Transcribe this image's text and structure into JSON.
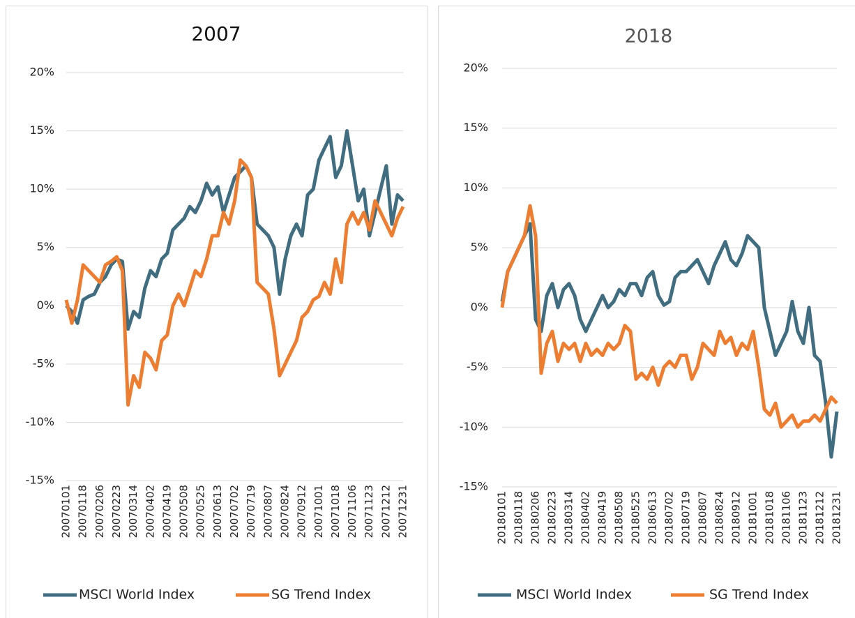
{
  "chart_data": [
    {
      "type": "line",
      "title": "2007",
      "categories": [
        "20070101",
        null,
        null,
        "20070118",
        null,
        null,
        "20070206",
        null,
        null,
        "20070223",
        null,
        null,
        "20070314",
        null,
        null,
        "20070402",
        null,
        null,
        "20070419",
        null,
        null,
        "20070508",
        null,
        null,
        "20070525",
        null,
        null,
        "20070613",
        null,
        null,
        "20070702",
        null,
        null,
        "20070719",
        null,
        null,
        "20070807",
        null,
        null,
        "20070824",
        null,
        null,
        "20070912",
        null,
        null,
        "20071001",
        null,
        null,
        "20071018",
        null,
        null,
        "20071106",
        null,
        null,
        "20071123",
        null,
        null,
        "20071212",
        null,
        null,
        "20071231"
      ],
      "series": [
        {
          "name": "MSCI World Index",
          "color": "#416d80",
          "values": [
            0,
            -0.5,
            -1.5,
            0.5,
            0.8,
            1,
            2,
            2.5,
            3.5,
            4,
            3.8,
            -2,
            -0.5,
            -1,
            1.5,
            3,
            2.5,
            4,
            4.5,
            6.5,
            7,
            7.5,
            8.5,
            8,
            9,
            10.5,
            9.5,
            10.2,
            8,
            9.5,
            11,
            11.5,
            12,
            11,
            7,
            6.5,
            6,
            5,
            1,
            4,
            6,
            7,
            6,
            9.5,
            10,
            12.5,
            13.5,
            14.5,
            11,
            12,
            15,
            12,
            9,
            10,
            6,
            8,
            10,
            12,
            7,
            9.5,
            9
          ]
        },
        {
          "name": "SG Trend Index",
          "color": "#ed7d31",
          "values": [
            0.5,
            -1.5,
            0.5,
            3.5,
            3,
            2.5,
            2,
            3.5,
            3.8,
            4.2,
            3,
            -8.5,
            -6,
            -7,
            -4,
            -4.5,
            -5.5,
            -3,
            -2.5,
            0,
            1,
            0,
            1.5,
            3,
            2.5,
            4,
            6,
            6,
            8,
            7,
            9,
            12.5,
            12,
            11,
            2,
            1.5,
            1,
            -2,
            -6,
            -5,
            -4,
            -3,
            -1,
            -0.5,
            0.5,
            0.8,
            2,
            1,
            4,
            2,
            7,
            8,
            7,
            8,
            6.5,
            9,
            8,
            7,
            6,
            7.5,
            8.5
          ]
        }
      ],
      "ylim": [
        -15,
        20
      ],
      "yticks": [
        {
          "value": -15,
          "label": "-15%"
        },
        {
          "value": -10,
          "label": "-10%"
        },
        {
          "value": -5,
          "label": "-5%"
        },
        {
          "value": 0,
          "label": "0%"
        },
        {
          "value": 5,
          "label": "5%"
        },
        {
          "value": 10,
          "label": "10%"
        },
        {
          "value": 15,
          "label": "15%"
        },
        {
          "value": 20,
          "label": "20%"
        }
      ],
      "grid": true
    },
    {
      "type": "line",
      "title": "2018",
      "categories": [
        "20180101",
        null,
        null,
        "20180118",
        null,
        null,
        "20180206",
        null,
        null,
        "20180223",
        null,
        null,
        "20180314",
        null,
        null,
        "20180402",
        null,
        null,
        "20180419",
        null,
        null,
        "20180508",
        null,
        null,
        "20180525",
        null,
        null,
        "20180613",
        null,
        null,
        "20180702",
        null,
        null,
        "20180719",
        null,
        null,
        "20180807",
        null,
        null,
        "20180824",
        null,
        null,
        "20180912",
        null,
        null,
        "20181001",
        null,
        null,
        "20181018",
        null,
        null,
        "20181106",
        null,
        null,
        "20181123",
        null,
        null,
        "20181212",
        null,
        null,
        "20181231"
      ],
      "series": [
        {
          "name": "MSCI World Index",
          "color": "#416d80",
          "values": [
            0.5,
            3,
            4,
            5,
            6,
            7,
            -1,
            -2,
            1,
            2,
            0,
            1.5,
            2,
            1,
            -1,
            -2,
            -1,
            0,
            1,
            0,
            0.5,
            1.5,
            1,
            2,
            2,
            1,
            2.5,
            3,
            1,
            0.2,
            0.5,
            2.5,
            3,
            3,
            3.5,
            4,
            3,
            2,
            3.5,
            4.5,
            5.5,
            4,
            3.5,
            4.5,
            6,
            5.5,
            5,
            0,
            -2,
            -4,
            -3,
            -2,
            0.5,
            -2,
            -3,
            0,
            -4,
            -4.5,
            -8,
            -12.5,
            -8.7
          ]
        },
        {
          "name": "SG Trend Index",
          "color": "#ed7d31",
          "values": [
            0,
            3,
            4,
            5,
            6,
            8.5,
            6,
            -5.5,
            -3,
            -2,
            -4.5,
            -3,
            -3.5,
            -3,
            -4.5,
            -3,
            -4,
            -3.5,
            -4,
            -3,
            -3.5,
            -3,
            -1.5,
            -2,
            -6,
            -5.5,
            -6,
            -5,
            -6.5,
            -5,
            -4.5,
            -5,
            -4,
            -4,
            -6,
            -5,
            -3,
            -3.5,
            -4,
            -2,
            -3,
            -2.5,
            -4,
            -3,
            -3.5,
            -2,
            -5,
            -8.5,
            -9,
            -8,
            -10,
            -9.5,
            -9,
            -10,
            -9.5,
            -9.5,
            -9,
            -9.5,
            -8.5,
            -7.5,
            -8
          ]
        }
      ],
      "ylim": [
        -15,
        20
      ],
      "yticks": [
        {
          "value": -15,
          "label": "-15%"
        },
        {
          "value": -10,
          "label": "-10%"
        },
        {
          "value": -5,
          "label": "-5%"
        },
        {
          "value": 0,
          "label": "0%"
        },
        {
          "value": 5,
          "label": "5%"
        },
        {
          "value": 10,
          "label": "10%"
        },
        {
          "value": 15,
          "label": "15%"
        },
        {
          "value": 20,
          "label": "20%"
        }
      ],
      "grid": true
    }
  ]
}
